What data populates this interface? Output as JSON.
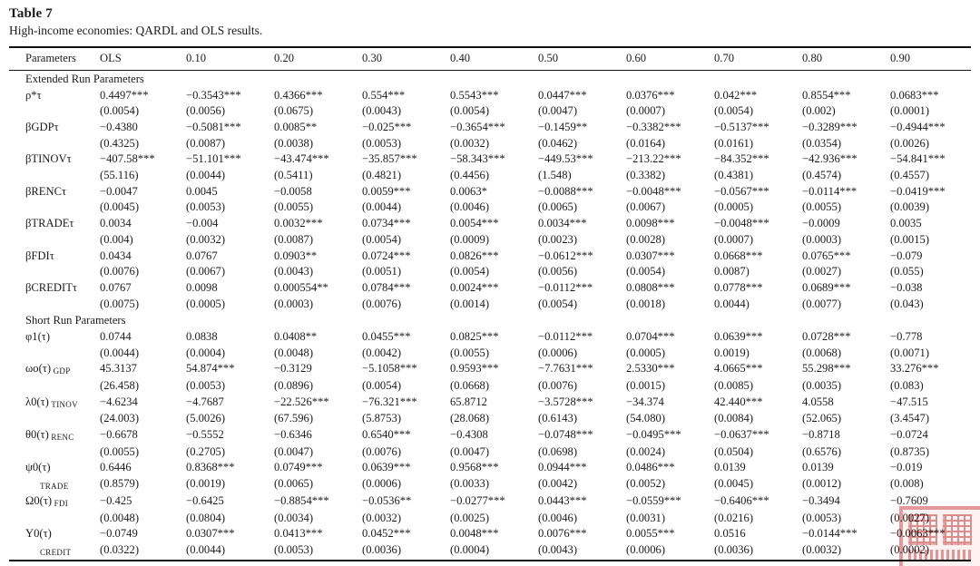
{
  "title": "Table 7",
  "subtitle": "High-income economies: QARDL and OLS results.",
  "columns": [
    "Parameters",
    "OLS",
    "0.10",
    "0.20",
    "0.30",
    "0.40",
    "0.50",
    "0.60",
    "0.70",
    "0.80",
    "0.90"
  ],
  "sections": [
    {
      "heading": "Extended Run Parameters",
      "rows": [
        {
          "label": "ρ*τ",
          "sub": "",
          "sub_pos": "none",
          "coef": [
            "0.4497***",
            "−0.3543***",
            "0.4366***",
            "0.554***",
            "0.5543***",
            "0.0447***",
            "0.0376***",
            "0.042***",
            "0.8554***",
            "0.0683***"
          ],
          "se": [
            "(0.0054)",
            "(0.0056)",
            "(0.0675)",
            "(0.0043)",
            "(0.0054)",
            "(0.0047)",
            "(0.0007)",
            "(0.0054)",
            "(0.002)",
            "(0.0001)"
          ]
        },
        {
          "label": "βGDPτ",
          "sub": "",
          "sub_pos": "none",
          "coef": [
            "−0.4380",
            "−0.5081***",
            "0.0085**",
            "−0.025***",
            "−0.3654***",
            "−0.1459**",
            "−0.3382***",
            "−0.5137***",
            "−0.3289***",
            "−0.4944***"
          ],
          "se": [
            "(0.4325)",
            "(0.0087)",
            "(0.0038)",
            "(0.0053)",
            "(0.0032)",
            "(0.0462)",
            "(0.0164)",
            "(0.0161)",
            "(0.0354)",
            "(0.0026)"
          ]
        },
        {
          "label": "βTINOVτ",
          "sub": "",
          "sub_pos": "none",
          "coef": [
            "−407.58***",
            "−51.101***",
            "−43.474***",
            "−35.857***",
            "−58.343***",
            "−449.53***",
            "−213.22***",
            "−84.352***",
            "−42.936***",
            "−54.841***"
          ],
          "se": [
            "(55.116)",
            "(0.0044)",
            "(0.5411)",
            "(0.4821)",
            "(0.4456)",
            "(1.548)",
            "(0.3382)",
            "(0.4381)",
            "(0.4574)",
            "(0.4557)"
          ]
        },
        {
          "label": "βRENCτ",
          "sub": "",
          "sub_pos": "none",
          "coef": [
            "−0.0047",
            "0.0045",
            "−0.0058",
            "0.0059***",
            "0.0063*",
            "−0.0088***",
            "−0.0048***",
            "−0.0567***",
            "−0.0114***",
            "−0.0419***"
          ],
          "se": [
            "(0.0045)",
            "(0.0053)",
            "(0.0055)",
            "(0.0044)",
            "(0.0046)",
            "(0.0065)",
            "(0.0067)",
            "(0.0005)",
            "(0.0055)",
            "(0.0039)"
          ]
        },
        {
          "label": "βTRADEτ",
          "sub": "",
          "sub_pos": "none",
          "coef": [
            "0.0034",
            "−0.004",
            "0.0032***",
            "0.0734***",
            "0.0054***",
            "0.0034***",
            "0.0098***",
            "−0.0048***",
            "−0.0009",
            "0.0035"
          ],
          "se": [
            "(0.004)",
            "(0.0032)",
            "(0.0087)",
            "(0.0054)",
            "(0.0009)",
            "(0.0023)",
            "(0.0028)",
            "(0.0007)",
            "(0.0003)",
            "(0.0015)"
          ]
        },
        {
          "label": "βFDIτ",
          "sub": "",
          "sub_pos": "none",
          "coef": [
            "0.0434",
            "0.0767",
            "0.0903**",
            "0.0724***",
            "0.0826***",
            "−0.0612***",
            "0.0307***",
            "0.0668***",
            "0.0765***",
            "−0.079"
          ],
          "se": [
            "(0.0076)",
            "(0.0067)",
            "(0.0043)",
            "(0.0051)",
            "(0.0054)",
            "(0.0056)",
            "(0.0054)",
            "0.0087)",
            "(0.0027)",
            "(0.055)"
          ]
        },
        {
          "label": "βCREDITτ",
          "sub": "",
          "sub_pos": "none",
          "coef": [
            "0.0767",
            "0.0098",
            "0.000554**",
            "0.0784***",
            "0.0024***",
            "−0.0112***",
            "0.0808***",
            "0.0778***",
            "0.0689***",
            "−0.038"
          ],
          "se": [
            "(0.0075)",
            "(0.0005)",
            "(0.0003)",
            "(0.0076)",
            "(0.0014)",
            "(0.0054)",
            "(0.0018)",
            "0.0044)",
            "(0.0077)",
            "(0.043)"
          ]
        }
      ]
    },
    {
      "heading": "Short Run Parameters",
      "rows": [
        {
          "label": "φ1(τ)",
          "sub": "",
          "sub_pos": "none",
          "coef": [
            "0.0744",
            "0.0838",
            "0.0408**",
            "0.0455***",
            "0.0825***",
            "−0.0112***",
            "0.0704***",
            "0.0639***",
            "0.0728***",
            "−0.778"
          ],
          "se": [
            "(0.0044)",
            "(0.0004)",
            "(0.0048)",
            "(0.0042)",
            "(0.0055)",
            "(0.0006)",
            "(0.0005)",
            "0.0019)",
            "(0.0068)",
            "(0.0071)"
          ]
        },
        {
          "label": "ωo(τ)",
          "sub": "GDP",
          "sub_pos": "inline",
          "coef": [
            "45.3137",
            "54.874***",
            "−0.3129",
            "−5.1058***",
            "0.9593***",
            "−7.7631***",
            "2.5330***",
            "4.0665***",
            "55.298***",
            "33.276***"
          ],
          "se": [
            "(26.458)",
            "(0.0053)",
            "(0.0896)",
            "(0.0054)",
            "(0.0668)",
            "(0.0076)",
            "(0.0015)",
            "(0.0085)",
            "(0.0035)",
            "(0.083)"
          ]
        },
        {
          "label": "λ0(τ)",
          "sub": "TINOV",
          "sub_pos": "inline",
          "coef": [
            "−4.6234",
            "−4.7687",
            "−22.526***",
            "−76.321***",
            "65.8712",
            "−3.5728***",
            "−34.374",
            "42.440***",
            "4.0558",
            "−47.515"
          ],
          "se": [
            "(24.003)",
            "(5.0026)",
            "(67.596)",
            "(5.8753)",
            "(28.068)",
            "(0.6143)",
            "(54.080)",
            "(0.0084)",
            "(52.065)",
            "(3.4547)"
          ]
        },
        {
          "label": "θ0(τ)",
          "sub": "RENC",
          "sub_pos": "inline",
          "coef": [
            "−0.6678",
            "−0.5552",
            "−0.6346",
            "0.6540***",
            "−0.4308",
            "−0.0748***",
            "−0.0495***",
            "−0.0637***",
            "−0.8718",
            "−0.0724"
          ],
          "se": [
            "(0.0055)",
            "(0.2705)",
            "(0.0047)",
            "(0.0076)",
            "(0.0047)",
            "(0.0698)",
            "(0.0024)",
            "(0.0504)",
            "(0.6576)",
            "(0.8735)"
          ]
        },
        {
          "label": "ψ0(τ)",
          "sub": "TRADE",
          "sub_pos": "below",
          "coef": [
            "0.6446",
            "0.8368***",
            "0.0749***",
            "0.0639***",
            "0.9568***",
            "0.0944***",
            "0.0486***",
            "0.0139",
            "0.0139",
            "−0.019"
          ],
          "se": [
            "(0.8579)",
            "(0.0019)",
            "(0.0065)",
            "(0.0006)",
            "(0.0033)",
            "(0.0042)",
            "(0.0052)",
            "(0.0045)",
            "(0.0012)",
            "(0.008)"
          ]
        },
        {
          "label": "Ω0(τ)",
          "sub": "FDI",
          "sub_pos": "inline",
          "coef": [
            "−0.425",
            "−0.6425",
            "−0.8854***",
            "−0.0536**",
            "−0.0277***",
            "0.0443***",
            "−0.0559***",
            "−0.6406***",
            "−0.3494",
            "−0.7609"
          ],
          "se": [
            "(0.0048)",
            "(0.0804)",
            "(0.0034)",
            "(0.0032)",
            "(0.0025)",
            "(0.0046)",
            "(0.0031)",
            "(0.0216)",
            "(0.0053)",
            "(0.0027)"
          ]
        },
        {
          "label": "Y0(τ)",
          "sub": "CREDIT",
          "sub_pos": "below",
          "coef": [
            "−0.0749",
            "0.0307***",
            "0.0413***",
            "0.0452***",
            "0.0048***",
            "0.0076***",
            "0.0055***",
            "0.0516",
            "−0.0144***",
            "−0.0063***"
          ],
          "se": [
            "(0.0322)",
            "(0.0044)",
            "(0.0053)",
            "(0.0036)",
            "(0.0004)",
            "(0.0043)",
            "(0.0006)",
            "(0.0036)",
            "(0.0032)",
            "(0.0002)"
          ]
        }
      ]
    }
  ],
  "watermark": {
    "name": "red-seal-stamp",
    "color": "#c34a4a"
  }
}
